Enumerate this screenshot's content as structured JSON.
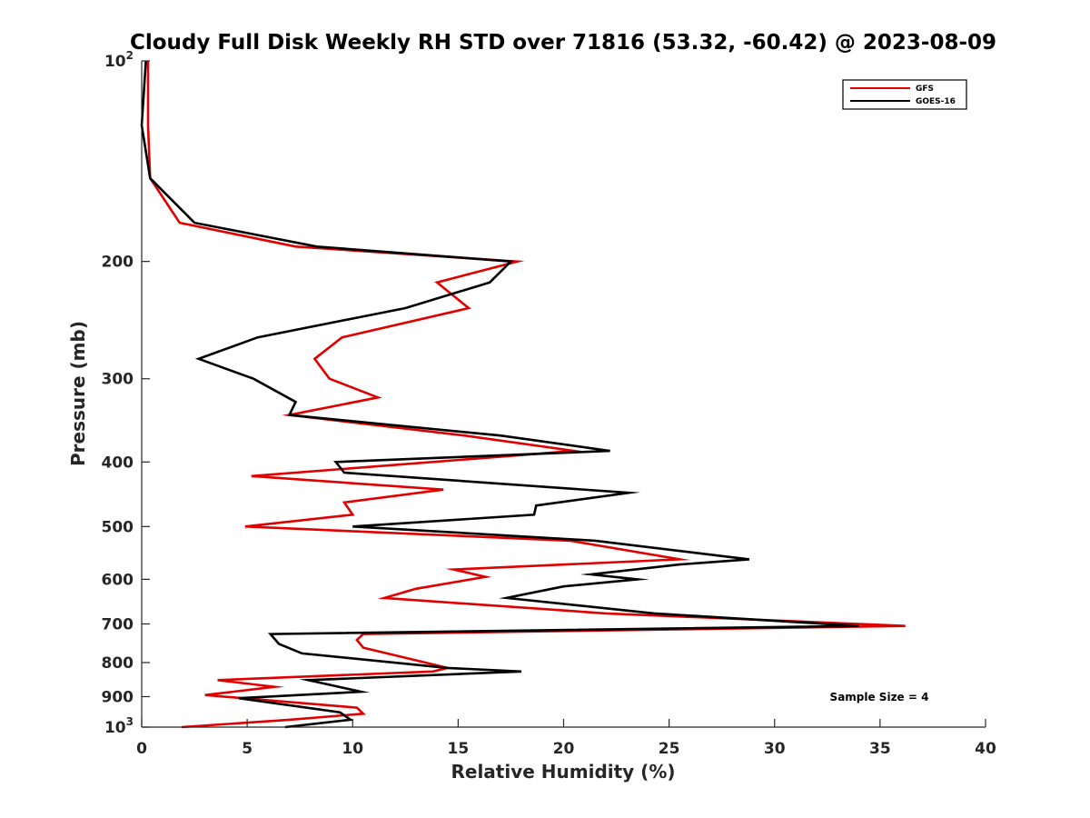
{
  "chart_data": {
    "type": "line",
    "title": "Cloudy Full Disk Weekly RH STD over 71816 (53.32, -60.42) @ 2023-08-09",
    "xlabel": "Relative Humidity (%)",
    "ylabel": "Pressure (mb)",
    "xlim": [
      0,
      40
    ],
    "ylim": [
      100,
      1000
    ],
    "y_scale": "log",
    "y_reversed": true,
    "x_ticks": [
      "0",
      "5",
      "10",
      "15",
      "20",
      "25",
      "30",
      "35",
      "40"
    ],
    "y_ticks": [
      {
        "value": 100,
        "base": "10",
        "exp": "2"
      },
      {
        "value": 200,
        "label": "200"
      },
      {
        "value": 300,
        "label": "300"
      },
      {
        "value": 400,
        "label": "400"
      },
      {
        "value": 500,
        "label": "500"
      },
      {
        "value": 600,
        "label": "600"
      },
      {
        "value": 700,
        "label": "700"
      },
      {
        "value": 800,
        "label": "800"
      },
      {
        "value": 900,
        "label": "900"
      },
      {
        "value": 1000,
        "base": "10",
        "exp": "3"
      }
    ],
    "legend_position": "top-right",
    "annotation": "Sample Size = 4",
    "grid": false,
    "series": [
      {
        "name": "GFS",
        "color": "#e00000",
        "points": [
          [
            0.3,
            100
          ],
          [
            0.3,
            125
          ],
          [
            0.4,
            150
          ],
          [
            1.8,
            175
          ],
          [
            7.3,
            190
          ],
          [
            17.8,
            200
          ],
          [
            14.0,
            215
          ],
          [
            15.5,
            235
          ],
          [
            9.5,
            260
          ],
          [
            8.2,
            280
          ],
          [
            8.9,
            300
          ],
          [
            11.2,
            320
          ],
          [
            7.0,
            340
          ],
          [
            15.3,
            365
          ],
          [
            20.5,
            385
          ],
          [
            16.0,
            395
          ],
          [
            5.2,
            420
          ],
          [
            14.3,
            440
          ],
          [
            9.6,
            460
          ],
          [
            10.0,
            480
          ],
          [
            4.9,
            500
          ],
          [
            20.3,
            525
          ],
          [
            25.5,
            560
          ],
          [
            14.8,
            580
          ],
          [
            16.3,
            595
          ],
          [
            13.0,
            620
          ],
          [
            11.5,
            640
          ],
          [
            22.0,
            675
          ],
          [
            36.2,
            705
          ],
          [
            10.5,
            725
          ],
          [
            10.2,
            740
          ],
          [
            10.5,
            760
          ],
          [
            14.5,
            815
          ],
          [
            13.8,
            825
          ],
          [
            3.6,
            850
          ],
          [
            6.3,
            870
          ],
          [
            3.0,
            895
          ],
          [
            10.2,
            935
          ],
          [
            10.5,
            955
          ],
          [
            7.0,
            975
          ],
          [
            1.9,
            1000
          ]
        ]
      },
      {
        "name": "GOES-16",
        "color": "#000000",
        "points": [
          [
            0.2,
            100
          ],
          [
            0.0,
            125
          ],
          [
            0.4,
            150
          ],
          [
            2.5,
            175
          ],
          [
            8.3,
            190
          ],
          [
            17.5,
            200
          ],
          [
            16.5,
            215
          ],
          [
            12.5,
            235
          ],
          [
            5.5,
            260
          ],
          [
            2.7,
            280
          ],
          [
            5.3,
            300
          ],
          [
            7.3,
            325
          ],
          [
            7.0,
            340
          ],
          [
            17.0,
            365
          ],
          [
            22.2,
            385
          ],
          [
            9.2,
            400
          ],
          [
            9.6,
            415
          ],
          [
            23.1,
            445
          ],
          [
            18.7,
            465
          ],
          [
            18.6,
            480
          ],
          [
            10.0,
            500
          ],
          [
            21.5,
            525
          ],
          [
            28.8,
            560
          ],
          [
            25.5,
            570
          ],
          [
            21.3,
            590
          ],
          [
            23.5,
            600
          ],
          [
            20.0,
            615
          ],
          [
            17.3,
            640
          ],
          [
            24.3,
            675
          ],
          [
            34.0,
            705
          ],
          [
            6.1,
            725
          ],
          [
            6.5,
            750
          ],
          [
            7.6,
            775
          ],
          [
            14.5,
            815
          ],
          [
            18.0,
            825
          ],
          [
            7.9,
            850
          ],
          [
            10.4,
            885
          ],
          [
            4.6,
            905
          ],
          [
            9.4,
            950
          ],
          [
            9.9,
            975
          ],
          [
            6.8,
            1000
          ]
        ]
      }
    ]
  }
}
